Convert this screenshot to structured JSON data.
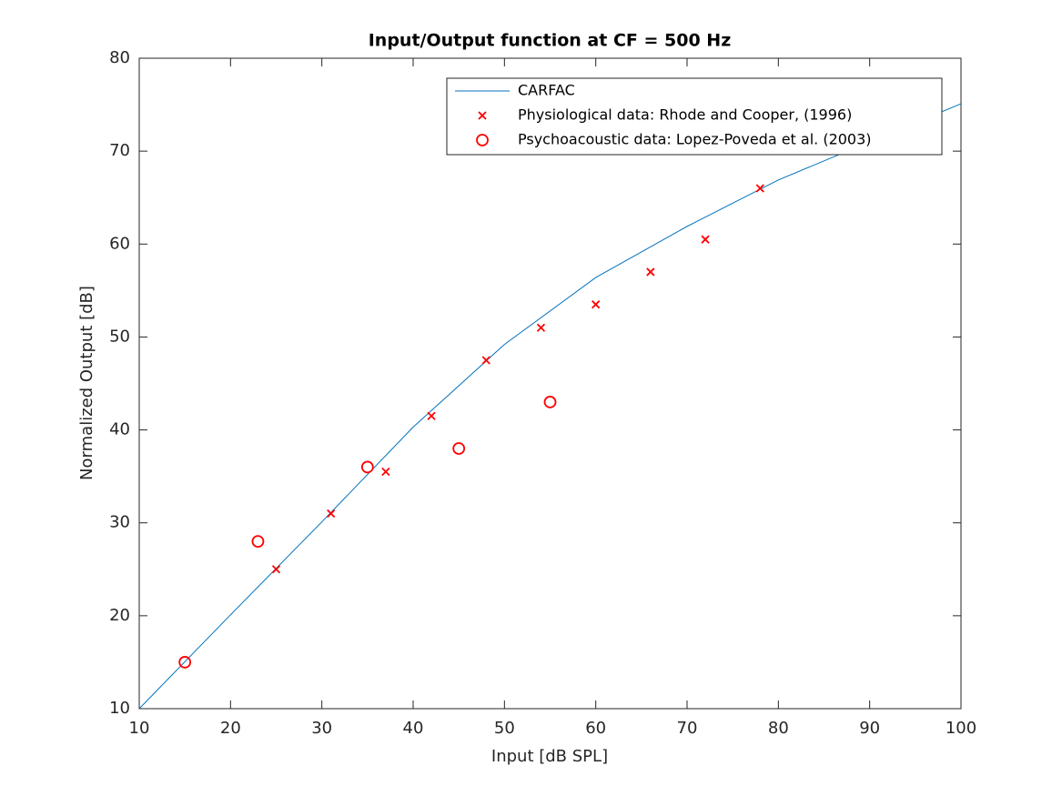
{
  "chart_data": {
    "type": "line",
    "title": "Input/Output function at CF = 500 Hz",
    "x_label": "Input [dB SPL]",
    "y_label": "Normalized Output [dB]",
    "xlim": [
      10,
      100
    ],
    "ylim": [
      10,
      80
    ],
    "xticks": [
      10,
      20,
      30,
      40,
      50,
      60,
      70,
      80,
      90,
      100
    ],
    "yticks": [
      10,
      20,
      30,
      40,
      50,
      60,
      70,
      80
    ],
    "grid": false,
    "legend": "northeast",
    "series": [
      {
        "name": "CARFAC",
        "color": "#0072bd",
        "marker": "none",
        "x": [
          10,
          20,
          30,
          40,
          50,
          60,
          70,
          80,
          90,
          100
        ],
        "values": [
          10,
          20.1,
          30.1,
          40.3,
          49.2,
          56.4,
          61.9,
          66.9,
          71,
          75.1
        ]
      },
      {
        "name": "Physiological data: Rhode and Cooper, (1996)",
        "color": "#ff0000",
        "marker": "x",
        "x": [
          25,
          31,
          37,
          42,
          48,
          54,
          60,
          66,
          72,
          78
        ],
        "values": [
          25,
          31,
          35.5,
          41.5,
          47.5,
          51,
          53.5,
          57,
          60.5,
          66
        ]
      },
      {
        "name": "Psychoacoustic data: Lopez-Poveda et al. (2003)",
        "color": "#ff0000",
        "marker": "o",
        "x": [
          15,
          23,
          35,
          45,
          55
        ],
        "values": [
          15,
          28,
          36,
          38,
          43
        ]
      }
    ]
  }
}
